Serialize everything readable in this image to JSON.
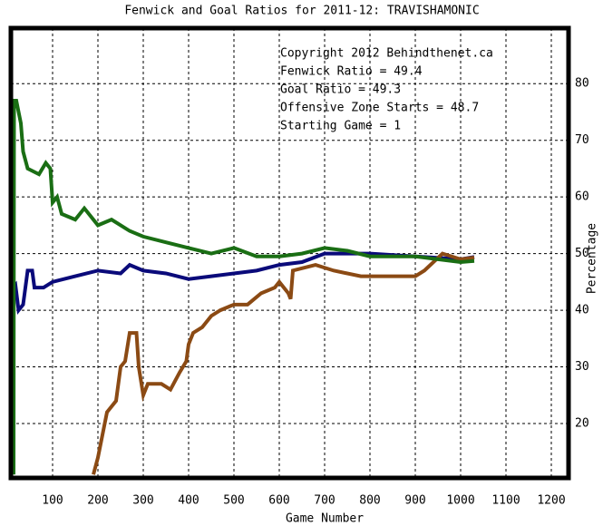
{
  "chart_data": {
    "type": "line",
    "title": "Fenwick and Goal Ratios for 2011-12: TRAVISHAMONIC",
    "xlabel": "Game Number",
    "ylabel": "Percentage",
    "xlim": [
      8,
      1238
    ],
    "ylim": [
      10.4,
      89.8
    ],
    "xticks": [
      100,
      200,
      300,
      400,
      500,
      600,
      700,
      800,
      900,
      1000,
      1100,
      1200
    ],
    "yticks": [
      20,
      30,
      40,
      50,
      60,
      70,
      80
    ],
    "grid": true,
    "annotations": [
      "Copyright 2012 Behindthenet.ca",
      "Starting Game = 1"
    ],
    "series": [
      {
        "name": "Fenwick Ratio = 49.4",
        "color": "#0a0a7a",
        "x": [
          12,
          18,
          25,
          35,
          45,
          55,
          60,
          80,
          100,
          150,
          200,
          250,
          270,
          300,
          350,
          400,
          450,
          500,
          550,
          600,
          650,
          700,
          800,
          900,
          1000,
          1030
        ],
        "values": [
          44,
          44.5,
          40,
          41,
          47,
          47,
          44,
          44,
          45,
          46,
          47,
          46.5,
          48,
          47,
          46.5,
          45.5,
          46,
          46.5,
          47,
          48,
          48.5,
          50,
          50,
          49.5,
          49,
          49.4
        ]
      },
      {
        "name": "Goal Ratio = 49.3",
        "color": "#8b4a14",
        "x": [
          190,
          200,
          220,
          240,
          250,
          260,
          270,
          285,
          290,
          300,
          310,
          340,
          360,
          380,
          395,
          400,
          410,
          430,
          450,
          470,
          500,
          530,
          560,
          590,
          600,
          620,
          625,
          630,
          680,
          720,
          780,
          850,
          900,
          920,
          960,
          1000,
          1030
        ],
        "values": [
          11,
          14,
          22,
          24,
          30,
          31,
          36,
          36,
          30,
          25,
          27,
          27,
          26,
          29,
          31,
          34,
          36,
          37,
          39,
          40,
          41,
          41,
          43,
          44,
          45,
          43,
          42,
          47,
          48,
          47,
          46,
          46,
          46,
          47,
          50,
          49,
          49.3
        ]
      },
      {
        "name": "Offensive Zone Starts = 48.7",
        "color": "#1a6e14",
        "x": [
          14,
          15,
          20,
          30,
          35,
          45,
          70,
          85,
          95,
          100,
          110,
          120,
          150,
          170,
          200,
          230,
          270,
          300,
          350,
          400,
          450,
          500,
          550,
          600,
          650,
          700,
          750,
          800,
          900,
          950,
          1000,
          1030
        ],
        "values": [
          11,
          77,
          77,
          73,
          68,
          65,
          64,
          66,
          65,
          59,
          60,
          57,
          56,
          58,
          55,
          56,
          54,
          53,
          52,
          51,
          50,
          51,
          49.5,
          49.5,
          50,
          51,
          50.5,
          49.5,
          49.5,
          49,
          48.5,
          48.7
        ]
      }
    ]
  }
}
